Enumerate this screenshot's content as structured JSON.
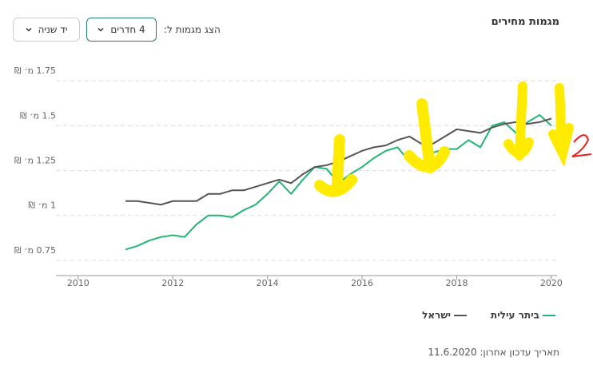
{
  "header": {
    "title": "מגמות מחירים",
    "show_label": "הצג מגמות ל:",
    "rooms_dropdown": "4 חדרים",
    "type_dropdown": "יד שניה"
  },
  "footer": {
    "updated": "תאריך עדכון אחרון: 11.6.2020"
  },
  "chart_data": {
    "type": "line",
    "x": [
      2011,
      2011.25,
      2011.5,
      2011.75,
      2012,
      2012.25,
      2012.5,
      2012.75,
      2013,
      2013.25,
      2013.5,
      2013.75,
      2014,
      2014.25,
      2014.5,
      2014.75,
      2015,
      2015.25,
      2015.5,
      2015.75,
      2016,
      2016.25,
      2016.5,
      2016.75,
      2017,
      2017.25,
      2017.5,
      2017.75,
      2018,
      2018.25,
      2018.5,
      2018.75,
      2019,
      2019.25,
      2019.5,
      2019.75,
      2020
    ],
    "series": [
      {
        "name": "ביתר עילית",
        "color": "#22b573",
        "values": [
          0.81,
          0.83,
          0.86,
          0.88,
          0.89,
          0.88,
          0.95,
          1.0,
          1.0,
          0.99,
          1.03,
          1.06,
          1.12,
          1.19,
          1.12,
          1.2,
          1.27,
          1.26,
          1.18,
          1.23,
          1.27,
          1.32,
          1.36,
          1.38,
          1.3,
          1.29,
          1.35,
          1.37,
          1.37,
          1.42,
          1.38,
          1.5,
          1.52,
          1.46,
          1.52,
          1.56,
          1.5
        ]
      },
      {
        "name": "ישראל",
        "color": "#555555",
        "values": [
          1.08,
          1.08,
          1.07,
          1.06,
          1.08,
          1.08,
          1.08,
          1.12,
          1.12,
          1.14,
          1.14,
          1.16,
          1.18,
          1.2,
          1.18,
          1.23,
          1.27,
          1.28,
          1.3,
          1.33,
          1.36,
          1.38,
          1.39,
          1.42,
          1.44,
          1.4,
          1.4,
          1.44,
          1.48,
          1.47,
          1.46,
          1.49,
          1.51,
          1.52,
          1.51,
          1.52,
          1.54
        ]
      }
    ],
    "xlim": [
      2009.53,
      2020.12
    ],
    "xticks": [
      2010,
      2012,
      2014,
      2016,
      2018,
      2020
    ],
    "ylim": [
      0.665,
      1.8
    ],
    "yticks": [
      {
        "value": 0.75,
        "label": "0.75 מ׳ ₪"
      },
      {
        "value": 1,
        "label": "1 מ׳ ₪"
      },
      {
        "value": 1.25,
        "label": "1.25 מ׳ ₪"
      },
      {
        "value": 1.5,
        "label": "1.5 מ׳ ₪"
      },
      {
        "value": 1.75,
        "label": "1.75 מ׳ ₪"
      }
    ],
    "grid": true
  }
}
